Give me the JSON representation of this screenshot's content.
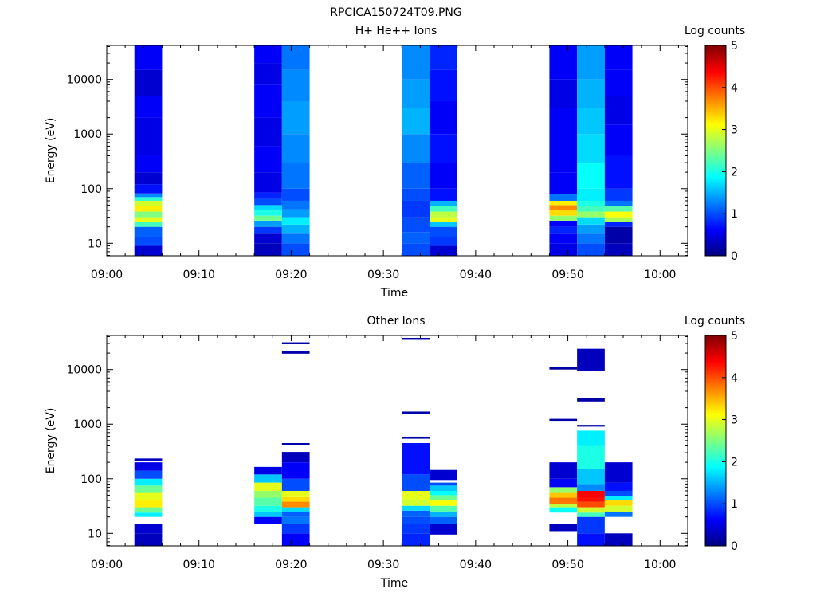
{
  "figure_title": "RPCICA150724T09.PNG",
  "colorbar": {
    "title": "Log counts",
    "ticks": [
      "0",
      "1",
      "2",
      "3",
      "4",
      "5"
    ],
    "colormap": "jet"
  },
  "chart_data": [
    {
      "type": "heatmap",
      "title": "H+ He++ Ions",
      "xlabel": "Time",
      "ylabel": "Energy (eV)",
      "y_scale": "log",
      "x_range": [
        "09:00",
        "10:03"
      ],
      "y_range": [
        5.9,
        42000
      ],
      "x_ticks": [
        "09:00",
        "09:10",
        "09:20",
        "09:30",
        "09:40",
        "09:50",
        "10:00"
      ],
      "y_ticks": [
        "10",
        "100",
        "1000",
        "10000"
      ],
      "color_range": [
        0,
        5
      ],
      "time_columns": [
        {
          "start": "09:03",
          "end": "09:06",
          "bins": [
            [
              5.9,
              9,
              0.4
            ],
            [
              9,
              13,
              1.0
            ],
            [
              13,
              20,
              1.1
            ],
            [
              20,
              25,
              2.2
            ],
            [
              25,
              30,
              3.0
            ],
            [
              30,
              38,
              2.5
            ],
            [
              38,
              48,
              3.2
            ],
            [
              48,
              60,
              2.9
            ],
            [
              60,
              70,
              2.1
            ],
            [
              70,
              82,
              1.3
            ],
            [
              82,
              120,
              0.7
            ],
            [
              120,
              200,
              0.4
            ],
            [
              200,
              400,
              0.6
            ],
            [
              400,
              800,
              0.5
            ],
            [
              800,
              2000,
              0.5
            ],
            [
              2000,
              5000,
              0.6
            ],
            [
              5000,
              15000,
              0.4
            ],
            [
              15000,
              42000,
              0.6
            ]
          ]
        },
        {
          "start": "09:16",
          "end": "09:19",
          "bins": [
            [
              5.9,
              10,
              0.3
            ],
            [
              10,
              15,
              0.4
            ],
            [
              15,
              20,
              0.9
            ],
            [
              20,
              26,
              1.4
            ],
            [
              26,
              32,
              2.4
            ],
            [
              32,
              40,
              2.0
            ],
            [
              40,
              50,
              1.7
            ],
            [
              50,
              65,
              1.0
            ],
            [
              65,
              85,
              0.8
            ],
            [
              85,
              200,
              0.5
            ],
            [
              200,
              600,
              0.6
            ],
            [
              600,
              2000,
              0.5
            ],
            [
              2000,
              8000,
              0.6
            ],
            [
              8000,
              20000,
              0.5
            ],
            [
              20000,
              42000,
              0.6
            ]
          ]
        },
        {
          "start": "09:19",
          "end": "09:22",
          "bins": [
            [
              5.9,
              10,
              1.0
            ],
            [
              10,
              15,
              1.2
            ],
            [
              15,
              22,
              1.5
            ],
            [
              22,
              30,
              1.8
            ],
            [
              30,
              42,
              1.4
            ],
            [
              42,
              60,
              1.2
            ],
            [
              60,
              100,
              1.0
            ],
            [
              100,
              300,
              1.2
            ],
            [
              300,
              1000,
              1.3
            ],
            [
              1000,
              4000,
              1.4
            ],
            [
              4000,
              15000,
              1.3
            ],
            [
              15000,
              42000,
              1.2
            ]
          ]
        },
        {
          "start": "09:32",
          "end": "09:35",
          "bins": [
            [
              5.9,
              10,
              1.0
            ],
            [
              10,
              16,
              1.1
            ],
            [
              16,
              30,
              1.0
            ],
            [
              30,
              60,
              0.9
            ],
            [
              60,
              100,
              1.0
            ],
            [
              100,
              300,
              1.1
            ],
            [
              300,
              1000,
              1.3
            ],
            [
              1000,
              3000,
              1.5
            ],
            [
              3000,
              10000,
              1.4
            ],
            [
              10000,
              42000,
              1.3
            ]
          ]
        },
        {
          "start": "09:35",
          "end": "09:38",
          "bins": [
            [
              5.9,
              9,
              0.4
            ],
            [
              9,
              13,
              0.9
            ],
            [
              13,
              20,
              1.0
            ],
            [
              20,
              25,
              1.6
            ],
            [
              25,
              30,
              3.0
            ],
            [
              30,
              38,
              2.8
            ],
            [
              38,
              48,
              2.2
            ],
            [
              48,
              60,
              1.5
            ],
            [
              60,
              100,
              0.7
            ],
            [
              100,
              300,
              0.6
            ],
            [
              300,
              1000,
              0.7
            ],
            [
              1000,
              4000,
              0.6
            ],
            [
              4000,
              15000,
              0.7
            ],
            [
              15000,
              42000,
              0.8
            ]
          ]
        },
        {
          "start": "09:48",
          "end": "09:51",
          "bins": [
            [
              5.9,
              10,
              0.5
            ],
            [
              10,
              15,
              0.6
            ],
            [
              15,
              20,
              0.8
            ],
            [
              20,
              26,
              0.6
            ],
            [
              26,
              32,
              2.6
            ],
            [
              32,
              40,
              3.3
            ],
            [
              40,
              50,
              3.7
            ],
            [
              50,
              60,
              3.2
            ],
            [
              60,
              80,
              1.2
            ],
            [
              80,
              200,
              0.6
            ],
            [
              200,
              800,
              0.6
            ],
            [
              800,
              3000,
              0.6
            ],
            [
              3000,
              10000,
              0.5
            ],
            [
              10000,
              42000,
              0.6
            ]
          ]
        },
        {
          "start": "09:51",
          "end": "09:54",
          "bins": [
            [
              5.9,
              10,
              1.0
            ],
            [
              10,
              15,
              1.2
            ],
            [
              15,
              22,
              1.4
            ],
            [
              22,
              30,
              1.7
            ],
            [
              30,
              38,
              2.6
            ],
            [
              38,
              48,
              2.2
            ],
            [
              48,
              60,
              2.0
            ],
            [
              60,
              100,
              1.8
            ],
            [
              100,
              300,
              1.9
            ],
            [
              300,
              1000,
              1.7
            ],
            [
              1000,
              3000,
              1.6
            ],
            [
              3000,
              10000,
              1.5
            ],
            [
              10000,
              42000,
              1.4
            ]
          ]
        },
        {
          "start": "09:54",
          "end": "09:57",
          "bins": [
            [
              5.9,
              10,
              0.3
            ],
            [
              10,
              20,
              0.2
            ],
            [
              20,
              25,
              0.8
            ],
            [
              25,
              30,
              2.7
            ],
            [
              30,
              38,
              3.1
            ],
            [
              38,
              48,
              2.3
            ],
            [
              48,
              60,
              1.2
            ],
            [
              60,
              100,
              0.9
            ],
            [
              100,
              400,
              0.7
            ],
            [
              400,
              1500,
              0.6
            ],
            [
              1500,
              5000,
              0.5
            ],
            [
              5000,
              15000,
              0.6
            ],
            [
              15000,
              42000,
              0.6
            ]
          ]
        }
      ]
    },
    {
      "type": "heatmap",
      "title": "Other Ions",
      "xlabel": "Time",
      "ylabel": "Energy (eV)",
      "y_scale": "log",
      "x_range": [
        "09:00",
        "10:03"
      ],
      "y_range": [
        5.9,
        42000
      ],
      "x_ticks": [
        "09:00",
        "09:10",
        "09:20",
        "09:30",
        "09:40",
        "09:50",
        "10:00"
      ],
      "y_ticks": [
        "10",
        "100",
        "1000",
        "10000"
      ],
      "color_range": [
        0,
        5
      ],
      "time_columns": [
        {
          "start": "09:03",
          "end": "09:06",
          "bins": [
            [
              5.9,
              10,
              0.3
            ],
            [
              10,
              15,
              0.4
            ],
            [
              20,
              24,
              1.8
            ],
            [
              24,
              30,
              2.4
            ],
            [
              30,
              40,
              3.2
            ],
            [
              40,
              55,
              3.0
            ],
            [
              55,
              75,
              2.4
            ],
            [
              75,
              100,
              1.8
            ],
            [
              100,
              140,
              1.0
            ],
            [
              140,
              200,
              0.5
            ],
            [
              215,
              235,
              0.3
            ]
          ]
        },
        {
          "start": "09:16",
          "end": "09:19",
          "bins": [
            [
              15,
              20,
              0.6
            ],
            [
              20,
              25,
              1.6
            ],
            [
              25,
              32,
              2.0
            ],
            [
              32,
              45,
              2.3
            ],
            [
              45,
              60,
              2.6
            ],
            [
              60,
              85,
              3.0
            ],
            [
              85,
              120,
              1.6
            ],
            [
              120,
              165,
              0.5
            ]
          ]
        },
        {
          "start": "09:19",
          "end": "09:22",
          "bins": [
            [
              5.9,
              10,
              0.6
            ],
            [
              10,
              15,
              0.9
            ],
            [
              15,
              20,
              1.2
            ],
            [
              20,
              25,
              1.1
            ],
            [
              25,
              30,
              1.7
            ],
            [
              30,
              38,
              3.7
            ],
            [
              38,
              46,
              3.3
            ],
            [
              46,
              60,
              3.0
            ],
            [
              60,
              100,
              1.0
            ],
            [
              100,
              200,
              0.6
            ],
            [
              200,
              310,
              0.3
            ],
            [
              420,
              450,
              0.2
            ],
            [
              19500,
              21500,
              0.2
            ],
            [
              29000,
              31500,
              0.2
            ]
          ]
        },
        {
          "start": "09:32",
          "end": "09:35",
          "bins": [
            [
              5.9,
              10,
              0.8
            ],
            [
              10,
              15,
              0.9
            ],
            [
              15,
              20,
              1.0
            ],
            [
              20,
              26,
              1.1
            ],
            [
              26,
              32,
              1.7
            ],
            [
              32,
              42,
              2.9
            ],
            [
              42,
              60,
              3.0
            ],
            [
              60,
              120,
              1.0
            ],
            [
              120,
              450,
              0.7
            ],
            [
              540,
              590,
              0.2
            ],
            [
              1550,
              1700,
              0.2
            ],
            [
              35000,
              38000,
              0.2
            ]
          ]
        },
        {
          "start": "09:35",
          "end": "09:38",
          "bins": [
            [
              9.5,
              15,
              0.4
            ],
            [
              15,
              20,
              1.1
            ],
            [
              20,
              25,
              1.5
            ],
            [
              25,
              32,
              2.3
            ],
            [
              32,
              40,
              3.1
            ],
            [
              40,
              50,
              2.4
            ],
            [
              50,
              60,
              1.9
            ],
            [
              60,
              75,
              1.6
            ],
            [
              75,
              85,
              1.0
            ],
            [
              95,
              145,
              0.4
            ]
          ]
        },
        {
          "start": "09:48",
          "end": "09:51",
          "bins": [
            [
              11,
              15,
              0.3
            ],
            [
              24,
              30,
              1.9
            ],
            [
              30,
              35,
              2.8
            ],
            [
              35,
              45,
              3.8
            ],
            [
              45,
              55,
              3.4
            ],
            [
              55,
              70,
              2.6
            ],
            [
              70,
              100,
              0.6
            ],
            [
              100,
              200,
              0.4
            ],
            [
              1150,
              1250,
              0.2
            ],
            [
              10000,
              11000,
              0.2
            ]
          ]
        },
        {
          "start": "09:51",
          "end": "09:54",
          "bins": [
            [
              5.9,
              10,
              0.7
            ],
            [
              10,
              20,
              0.9
            ],
            [
              20,
              24,
              2.2
            ],
            [
              24,
              30,
              2.9
            ],
            [
              30,
              38,
              4.0
            ],
            [
              38,
              45,
              4.3
            ],
            [
              45,
              60,
              4.4
            ],
            [
              60,
              80,
              1.3
            ],
            [
              80,
              150,
              1.6
            ],
            [
              150,
              400,
              2.0
            ],
            [
              400,
              760,
              1.8
            ],
            [
              900,
              970,
              0.2
            ],
            [
              2600,
              3000,
              0.2
            ],
            [
              9500,
              24000,
              0.3
            ]
          ]
        },
        {
          "start": "09:54",
          "end": "09:57",
          "bins": [
            [
              5.9,
              10,
              0.3
            ],
            [
              20,
              25,
              1.2
            ],
            [
              25,
              32,
              2.9
            ],
            [
              32,
              40,
              3.3
            ],
            [
              40,
              48,
              1.8
            ],
            [
              48,
              60,
              1.0
            ],
            [
              60,
              85,
              0.7
            ],
            [
              85,
              200,
              0.4
            ]
          ]
        }
      ]
    }
  ]
}
